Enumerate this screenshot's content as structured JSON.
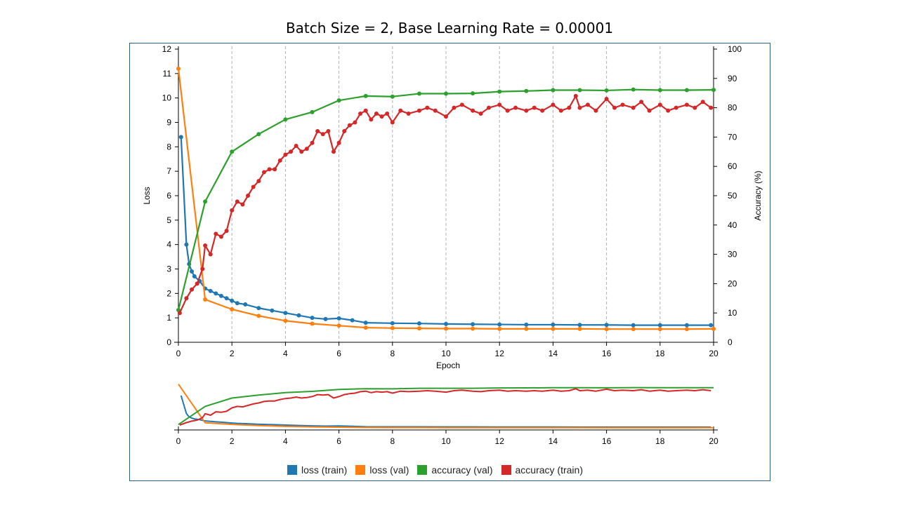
{
  "title": "Batch Size = 2, Base Learning Rate = 0.00001",
  "chart_data": {
    "type": "line",
    "xlabel": "Epoch",
    "ylabel_left": "Loss",
    "ylabel_right": "Accuracy (%)",
    "xlim": [
      0,
      20
    ],
    "ylim_left": [
      0,
      12
    ],
    "ylim_right": [
      0,
      100
    ],
    "x_ticks": [
      0,
      2,
      4,
      6,
      8,
      10,
      12,
      14,
      16,
      18,
      20
    ],
    "y_ticks_left": [
      0,
      1,
      2,
      3,
      4,
      5,
      6,
      7,
      8,
      9,
      10,
      11,
      12
    ],
    "y_ticks_right": [
      0,
      10,
      20,
      30,
      40,
      50,
      60,
      70,
      80,
      90,
      100
    ],
    "grid": "vertical dashed at even epochs",
    "legend_position": "bottom",
    "series": [
      {
        "name": "loss (train)",
        "axis": "left",
        "color": "#1f77b4",
        "x": [
          0.1,
          0.3,
          0.4,
          0.5,
          0.6,
          0.8,
          1.0,
          1.2,
          1.4,
          1.6,
          1.8,
          2.0,
          2.2,
          2.5,
          3.0,
          3.5,
          4.0,
          4.5,
          5.0,
          5.5,
          6.0,
          6.5,
          7.0,
          8.0,
          9.0,
          10.0,
          11.0,
          12.0,
          13.0,
          14.0,
          15.0,
          16.0,
          17.0,
          18.0,
          19.0,
          19.9
        ],
        "values": [
          8.4,
          4.0,
          3.2,
          2.9,
          2.7,
          2.5,
          2.2,
          2.1,
          2.0,
          1.9,
          1.8,
          1.7,
          1.6,
          1.55,
          1.4,
          1.3,
          1.2,
          1.1,
          1.0,
          0.95,
          0.98,
          0.9,
          0.8,
          0.78,
          0.77,
          0.75,
          0.74,
          0.73,
          0.72,
          0.72,
          0.71,
          0.71,
          0.7,
          0.7,
          0.7,
          0.7
        ]
      },
      {
        "name": "loss (val)",
        "axis": "left",
        "color": "#ff7f0e",
        "x": [
          0,
          1,
          2,
          3,
          4,
          5,
          6,
          7,
          8,
          9,
          10,
          11,
          12,
          13,
          14,
          15,
          16,
          17,
          18,
          19,
          20
        ],
        "values": [
          11.2,
          1.75,
          1.35,
          1.08,
          0.88,
          0.76,
          0.68,
          0.6,
          0.58,
          0.57,
          0.56,
          0.56,
          0.55,
          0.55,
          0.55,
          0.55,
          0.54,
          0.54,
          0.54,
          0.54,
          0.55
        ]
      },
      {
        "name": "accuracy (val)",
        "axis": "right",
        "color": "#2ca02c",
        "x": [
          0,
          1,
          2,
          3,
          4,
          5,
          6,
          7,
          8,
          9,
          10,
          11,
          12,
          13,
          14,
          15,
          16,
          17,
          18,
          19,
          20
        ],
        "values": [
          11,
          48,
          65,
          71,
          76,
          78.5,
          82.5,
          84,
          83.8,
          84.8,
          84.8,
          84.9,
          85.5,
          85.7,
          86,
          86,
          85.9,
          86.2,
          86,
          86,
          86.1
        ]
      },
      {
        "name": "accuracy (train)",
        "axis": "right",
        "color": "#d62728",
        "x": [
          0.05,
          0.3,
          0.5,
          0.7,
          0.9,
          1.0,
          1.2,
          1.4,
          1.6,
          1.8,
          2.0,
          2.2,
          2.4,
          2.6,
          2.8,
          3.0,
          3.2,
          3.4,
          3.6,
          3.8,
          4.0,
          4.2,
          4.4,
          4.6,
          4.8,
          5.0,
          5.2,
          5.4,
          5.6,
          5.8,
          6.0,
          6.2,
          6.4,
          6.6,
          6.8,
          7.0,
          7.2,
          7.4,
          7.6,
          7.8,
          8.0,
          8.3,
          8.6,
          9.0,
          9.3,
          9.6,
          10.0,
          10.3,
          10.6,
          11.0,
          11.3,
          11.6,
          12.0,
          12.3,
          12.6,
          13.0,
          13.3,
          13.6,
          14.0,
          14.3,
          14.6,
          14.85,
          15.0,
          15.3,
          15.6,
          16.0,
          16.3,
          16.6,
          17.0,
          17.3,
          17.6,
          18.0,
          18.3,
          18.6,
          19.0,
          19.3,
          19.6,
          19.9
        ],
        "values": [
          10,
          15,
          18,
          20,
          25,
          33,
          30,
          37,
          36,
          38,
          45,
          48,
          47,
          50,
          53,
          55,
          58,
          59,
          59,
          62,
          64,
          65,
          67,
          65,
          66,
          68,
          72,
          71,
          72,
          65,
          68,
          72,
          74,
          75,
          78,
          79,
          76,
          78,
          77,
          78,
          75,
          79,
          78,
          79,
          80,
          79,
          77,
          80,
          81,
          79,
          78,
          80,
          81,
          79,
          80,
          79,
          80,
          79,
          81,
          79,
          80,
          84,
          80,
          81,
          79,
          83,
          80,
          81,
          80,
          82,
          79,
          81,
          79,
          80,
          81,
          80,
          82,
          80
        ]
      }
    ]
  }
}
